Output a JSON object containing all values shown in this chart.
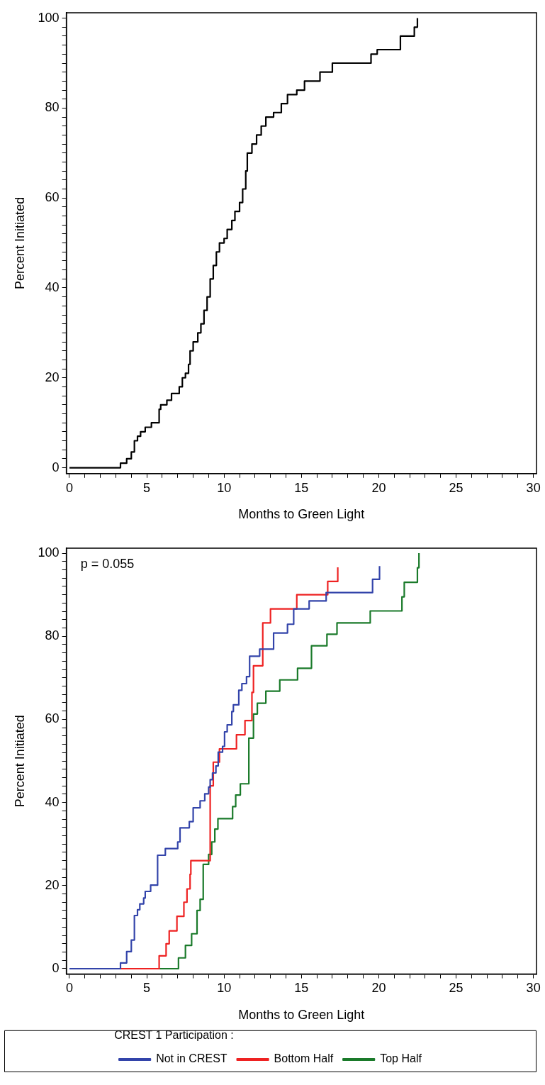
{
  "chart_data": [
    {
      "type": "step",
      "xlabel": "Months to Green Light",
      "ylabel": "Percent Initiated",
      "legend": false,
      "line_style": "solid",
      "xlim": [
        -0.2,
        30.2
      ],
      "ylim": [
        -1.3,
        101.2
      ],
      "xticks": [
        0,
        {
          "value": 1,
          "label": null
        },
        {
          "value": 2,
          "label": null
        },
        {
          "value": 3,
          "label": null
        },
        {
          "value": 4,
          "label": null
        },
        5,
        {
          "value": 6,
          "label": null
        },
        {
          "value": 7,
          "label": null
        },
        {
          "value": 8,
          "label": null
        },
        {
          "value": 9,
          "label": null
        },
        10,
        {
          "value": 11,
          "label": null
        },
        {
          "value": 12,
          "label": null
        },
        {
          "value": 13,
          "label": null
        },
        {
          "value": 14,
          "label": null
        },
        15,
        {
          "value": 16,
          "label": null
        },
        {
          "value": 17,
          "label": null
        },
        {
          "value": 18,
          "label": null
        },
        {
          "value": 19,
          "label": null
        },
        20,
        {
          "value": 21,
          "label": null
        },
        {
          "value": 22,
          "label": null
        },
        {
          "value": 23,
          "label": null
        },
        {
          "value": 24,
          "label": null
        },
        25,
        {
          "value": 26,
          "label": null
        },
        {
          "value": 27,
          "label": null
        },
        {
          "value": 28,
          "label": null
        },
        {
          "value": 29,
          "label": null
        },
        30
      ],
      "yticks": [
        0,
        {
          "value": 2,
          "label": null
        },
        {
          "value": 4,
          "label": null
        },
        {
          "value": 6,
          "label": null
        },
        {
          "value": 8,
          "label": null
        },
        {
          "value": 10,
          "label": null
        },
        {
          "value": 12,
          "label": null
        },
        {
          "value": 14,
          "label": null
        },
        {
          "value": 16,
          "label": null
        },
        {
          "value": 18,
          "label": null
        },
        20,
        {
          "value": 22,
          "label": null
        },
        {
          "value": 24,
          "label": null
        },
        {
          "value": 26,
          "label": null
        },
        {
          "value": 28,
          "label": null
        },
        {
          "value": 30,
          "label": null
        },
        {
          "value": 32,
          "label": null
        },
        {
          "value": 34,
          "label": null
        },
        {
          "value": 36,
          "label": null
        },
        {
          "value": 38,
          "label": null
        },
        40,
        {
          "value": 42,
          "label": null
        },
        {
          "value": 44,
          "label": null
        },
        {
          "value": 46,
          "label": null
        },
        {
          "value": 48,
          "label": null
        },
        {
          "value": 50,
          "label": null
        },
        {
          "value": 52,
          "label": null
        },
        {
          "value": 54,
          "label": null
        },
        {
          "value": 56,
          "label": null
        },
        {
          "value": 58,
          "label": null
        },
        60,
        {
          "value": 62,
          "label": null
        },
        {
          "value": 64,
          "label": null
        },
        {
          "value": 66,
          "label": null
        },
        {
          "value": 68,
          "label": null
        },
        {
          "value": 70,
          "label": null
        },
        {
          "value": 72,
          "label": null
        },
        {
          "value": 74,
          "label": null
        },
        {
          "value": 76,
          "label": null
        },
        {
          "value": 78,
          "label": null
        },
        80,
        {
          "value": 82,
          "label": null
        },
        {
          "value": 84,
          "label": null
        },
        {
          "value": 86,
          "label": null
        },
        {
          "value": 88,
          "label": null
        },
        {
          "value": 90,
          "label": null
        },
        {
          "value": 92,
          "label": null
        },
        {
          "value": 94,
          "label": null
        },
        {
          "value": 96,
          "label": null
        },
        {
          "value": 98,
          "label": null
        },
        100
      ],
      "series": [
        {
          "color": "#000000",
          "x": [
            0,
            3.3,
            3.7,
            4.0,
            4.2,
            4.4,
            4.6,
            4.9,
            5.3,
            5.8,
            5.9,
            6.3,
            6.6,
            7.1,
            7.3,
            7.5,
            7.7,
            7.8,
            8.0,
            8.3,
            8.5,
            8.7,
            8.9,
            9.1,
            9.3,
            9.5,
            9.7,
            10.0,
            10.2,
            10.5,
            10.7,
            11.0,
            11.2,
            11.4,
            11.5,
            11.8,
            12.1,
            12.4,
            12.7,
            13.2,
            13.7,
            14.1,
            14.7,
            15.2,
            16.2,
            17.0,
            19.5,
            19.9,
            21.4,
            22.3,
            22.5
          ],
          "values": [
            0,
            1,
            2,
            3.5,
            6,
            7,
            8,
            9,
            10,
            13,
            14,
            15,
            16.5,
            18,
            20,
            21,
            23,
            26,
            28,
            30,
            32,
            35,
            38,
            42,
            45,
            48,
            50,
            51,
            53,
            55,
            57,
            59,
            62,
            66,
            70,
            72,
            74,
            76,
            78,
            79,
            81,
            83,
            84,
            86,
            88,
            90,
            92,
            93,
            96,
            98,
            100
          ]
        }
      ]
    },
    {
      "type": "step",
      "xlabel": "Months to Green Light",
      "ylabel": "Percent Initiated",
      "legend": "bottom",
      "legend_title": "CREST 1 Participation :",
      "line_style": "solid",
      "annotations": [
        "p = 0.055"
      ],
      "xlim": [
        -0.2,
        30.2
      ],
      "ylim": [
        -1.3,
        101.2
      ],
      "xticks": [
        0,
        {
          "value": 1,
          "label": null
        },
        {
          "value": 2,
          "label": null
        },
        {
          "value": 3,
          "label": null
        },
        {
          "value": 4,
          "label": null
        },
        5,
        {
          "value": 6,
          "label": null
        },
        {
          "value": 7,
          "label": null
        },
        {
          "value": 8,
          "label": null
        },
        {
          "value": 9,
          "label": null
        },
        10,
        {
          "value": 11,
          "label": null
        },
        {
          "value": 12,
          "label": null
        },
        {
          "value": 13,
          "label": null
        },
        {
          "value": 14,
          "label": null
        },
        15,
        {
          "value": 16,
          "label": null
        },
        {
          "value": 17,
          "label": null
        },
        {
          "value": 18,
          "label": null
        },
        {
          "value": 19,
          "label": null
        },
        20,
        {
          "value": 21,
          "label": null
        },
        {
          "value": 22,
          "label": null
        },
        {
          "value": 23,
          "label": null
        },
        {
          "value": 24,
          "label": null
        },
        25,
        {
          "value": 26,
          "label": null
        },
        {
          "value": 27,
          "label": null
        },
        {
          "value": 28,
          "label": null
        },
        {
          "value": 29,
          "label": null
        },
        30
      ],
      "yticks": [
        0,
        {
          "value": 2,
          "label": null
        },
        {
          "value": 4,
          "label": null
        },
        {
          "value": 6,
          "label": null
        },
        {
          "value": 8,
          "label": null
        },
        {
          "value": 10,
          "label": null
        },
        {
          "value": 12,
          "label": null
        },
        {
          "value": 14,
          "label": null
        },
        {
          "value": 16,
          "label": null
        },
        {
          "value": 18,
          "label": null
        },
        20,
        {
          "value": 22,
          "label": null
        },
        {
          "value": 24,
          "label": null
        },
        {
          "value": 26,
          "label": null
        },
        {
          "value": 28,
          "label": null
        },
        {
          "value": 30,
          "label": null
        },
        {
          "value": 32,
          "label": null
        },
        {
          "value": 34,
          "label": null
        },
        {
          "value": 36,
          "label": null
        },
        {
          "value": 38,
          "label": null
        },
        40,
        {
          "value": 42,
          "label": null
        },
        {
          "value": 44,
          "label": null
        },
        {
          "value": 46,
          "label": null
        },
        {
          "value": 48,
          "label": null
        },
        {
          "value": 50,
          "label": null
        },
        {
          "value": 52,
          "label": null
        },
        {
          "value": 54,
          "label": null
        },
        {
          "value": 56,
          "label": null
        },
        {
          "value": 58,
          "label": null
        },
        60,
        {
          "value": 62,
          "label": null
        },
        {
          "value": 64,
          "label": null
        },
        {
          "value": 66,
          "label": null
        },
        {
          "value": 68,
          "label": null
        },
        {
          "value": 70,
          "label": null
        },
        {
          "value": 72,
          "label": null
        },
        {
          "value": 74,
          "label": null
        },
        {
          "value": 76,
          "label": null
        },
        {
          "value": 78,
          "label": null
        },
        80,
        {
          "value": 82,
          "label": null
        },
        {
          "value": 84,
          "label": null
        },
        {
          "value": 86,
          "label": null
        },
        {
          "value": 88,
          "label": null
        },
        {
          "value": 90,
          "label": null
        },
        {
          "value": 92,
          "label": null
        },
        {
          "value": 94,
          "label": null
        },
        {
          "value": 96,
          "label": null
        },
        {
          "value": 98,
          "label": null
        },
        100
      ],
      "series": [
        {
          "name": "Not in CREST",
          "color": "#3344aa",
          "x": [
            0,
            3.3,
            3.7,
            4.0,
            4.2,
            4.4,
            4.55,
            4.8,
            4.9,
            5.25,
            5.7,
            6.2,
            7.0,
            7.15,
            7.75,
            8.0,
            8.45,
            8.75,
            9.0,
            9.1,
            9.25,
            9.47,
            9.62,
            9.9,
            10.03,
            10.2,
            10.5,
            10.6,
            10.95,
            11.15,
            11.45,
            11.65,
            12.3,
            13.2,
            14.1,
            14.5,
            15.5,
            16.6,
            19.6,
            20.05
          ],
          "values": [
            0,
            1.4,
            4.1,
            6.9,
            12.8,
            14.2,
            15.6,
            17,
            18.6,
            20.1,
            27.3,
            28.9,
            30.5,
            33.9,
            35.4,
            38.7,
            40.4,
            42.1,
            43.7,
            45.5,
            47.1,
            48.8,
            52.1,
            53.5,
            57,
            58.7,
            61.9,
            63.5,
            67,
            68.6,
            70.3,
            75.2,
            76.9,
            80.8,
            82.9,
            86.6,
            88.5,
            90.5,
            93.7,
            96.9
          ]
        },
        {
          "name": "Bottom Half",
          "color": "#ee2222",
          "x": [
            0,
            5.8,
            6.25,
            6.45,
            6.95,
            7.4,
            7.6,
            7.8,
            7.85,
            9.1,
            9.3,
            9.7,
            10.8,
            11.35,
            11.8,
            11.9,
            12.5,
            13.0,
            14.7,
            16.7,
            17.35
          ],
          "values": [
            0,
            3.1,
            6,
            9.1,
            12.6,
            16,
            19.2,
            22.7,
            26,
            44,
            49.7,
            52.9,
            56.3,
            59.7,
            66.5,
            72.9,
            83.2,
            86.6,
            90,
            93.2,
            96.6
          ]
        },
        {
          "name": "Top Half",
          "color": "#1a7a2a",
          "x": [
            0,
            7.05,
            7.5,
            7.9,
            8.25,
            8.45,
            8.65,
            9.0,
            9.2,
            9.4,
            9.6,
            10.55,
            10.75,
            11.05,
            11.6,
            11.9,
            12.15,
            12.7,
            13.6,
            14.75,
            15.65,
            16.65,
            17.3,
            19.45,
            21.5,
            21.65,
            22.5,
            22.6
          ],
          "values": [
            0,
            2.6,
            5.6,
            8.4,
            14,
            16.7,
            25.1,
            27.5,
            30.5,
            33.6,
            36.1,
            39,
            41.8,
            44.5,
            55.5,
            61.3,
            63.9,
            66.8,
            69.5,
            72.3,
            77.7,
            80.5,
            83.2,
            86.1,
            89.5,
            93,
            96.5,
            100
          ]
        }
      ]
    }
  ]
}
